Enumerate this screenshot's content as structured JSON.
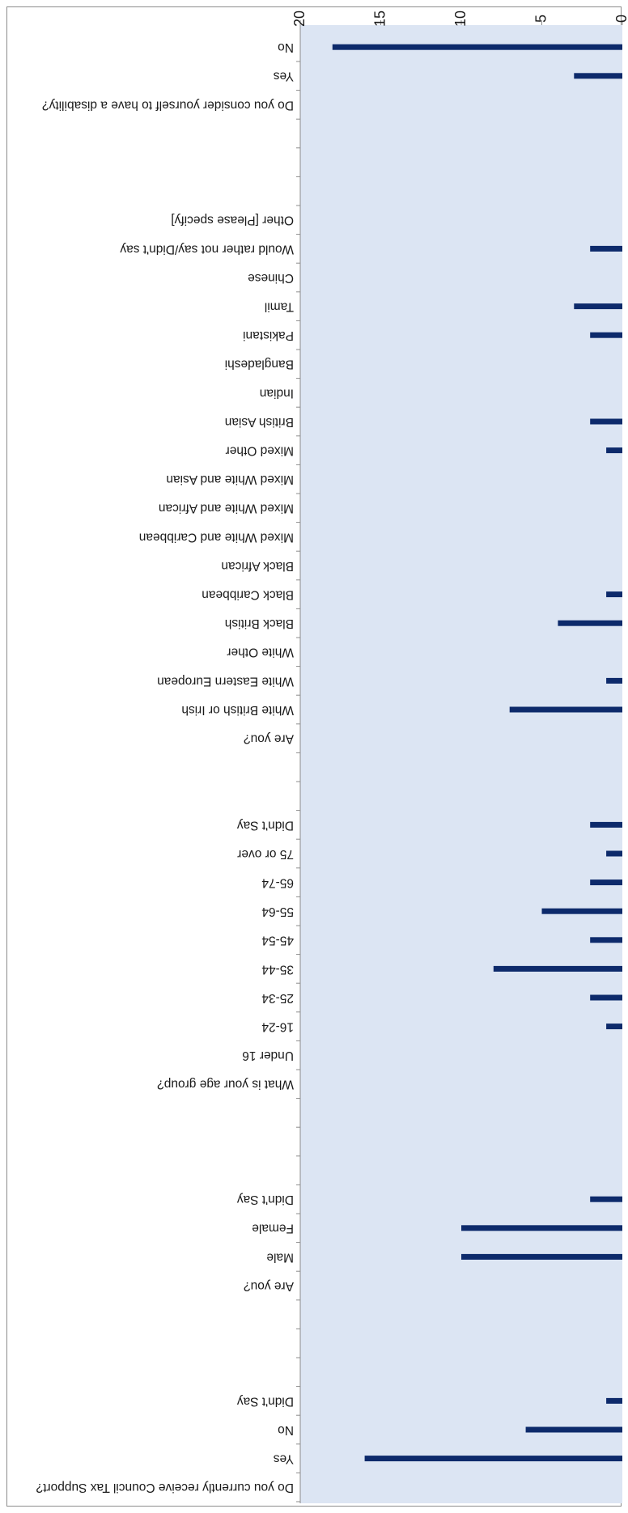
{
  "chart_data": {
    "type": "bar",
    "orientation": "horizontal",
    "rotation": "180deg (image shown upside down)",
    "xlim": [
      0,
      20
    ],
    "xticks": [
      0,
      5,
      10,
      15,
      20
    ],
    "grid": false,
    "plot_background": "#dce5f3",
    "bar_color": "#0d2a6b",
    "categories": [
      "Do you currently receive Council Tax Support?",
      "Yes",
      "No",
      "Didn't Say",
      "",
      "",
      "",
      "Are you?",
      "Male",
      "Female",
      "Didn't Say",
      "",
      "",
      "",
      "What is your age group?",
      "Under 16",
      "16-24",
      "25-34",
      "35-44",
      "45-54",
      "55-64",
      "65-74",
      "75 or over",
      "Didn't Say",
      "",
      "",
      "Are you?",
      "White British or Irish",
      "White Eastern European",
      "White Other",
      "Black British",
      "Black Caribbean",
      "Black African",
      "Mixed White and Caribbean",
      "Mixed White and African",
      "Mixed White and Asian",
      "Mixed Other",
      "British Asian",
      "Indian",
      "Bangladeshi",
      "Pakistani",
      "Tamil",
      "Chinese",
      "Would rather not say/Didn't say",
      "Other [Please specify]",
      "",
      "",
      "",
      "Do you consider yourself to have a disability?",
      "Yes",
      "No"
    ],
    "values": [
      0,
      16,
      6,
      1,
      0,
      0,
      0,
      0,
      10,
      10,
      2,
      0,
      0,
      0,
      0,
      0,
      1,
      2,
      8,
      2,
      5,
      2,
      1,
      2,
      0,
      0,
      0,
      7,
      1,
      0,
      4,
      1,
      0,
      0,
      0,
      0,
      1,
      2,
      0,
      0,
      2,
      3,
      0,
      2,
      0,
      0,
      0,
      0,
      0,
      3,
      18
    ]
  }
}
